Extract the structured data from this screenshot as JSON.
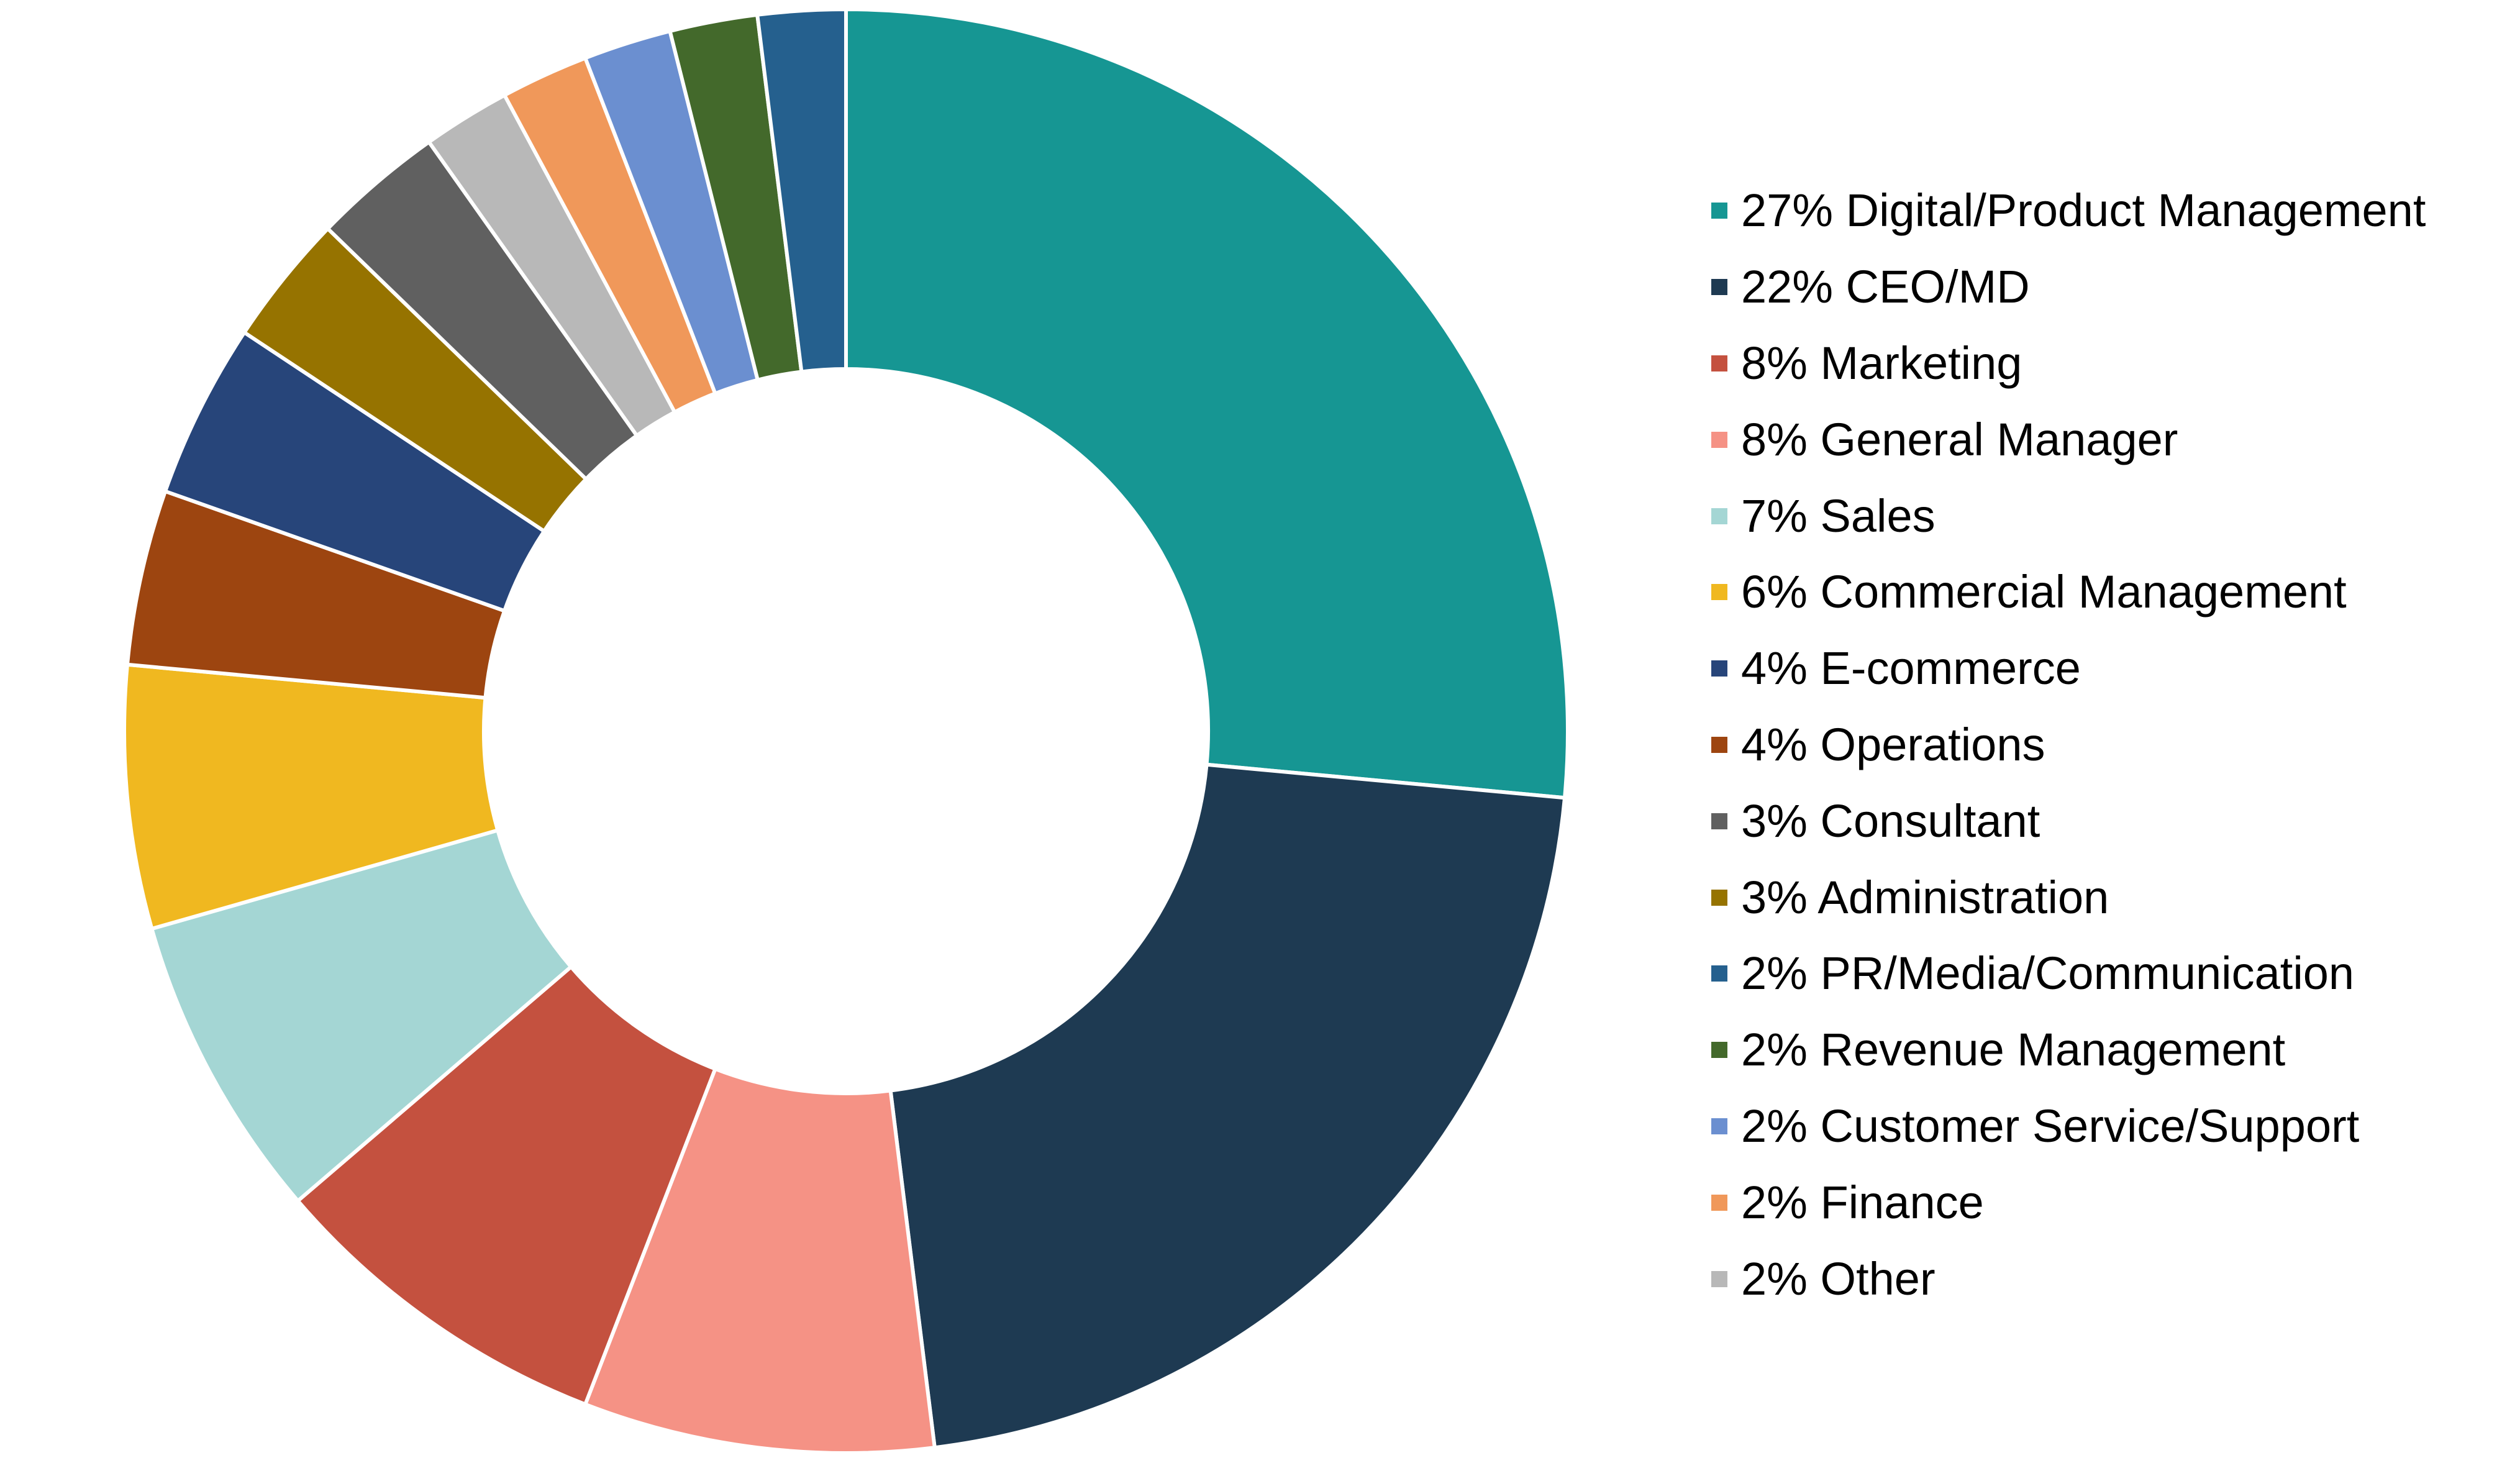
{
  "chart_data": {
    "type": "pie",
    "variant": "donut",
    "start_angle": "12 o'clock",
    "direction": "clockwise",
    "legend_position": "right",
    "slices": [
      {
        "label": "27% Digital/Product Management",
        "value": 27,
        "color": "#169693"
      },
      {
        "label": "22% CEO/MD",
        "value": 22,
        "color": "#1e3a52"
      },
      {
        "label": "8% Marketing",
        "value": 8,
        "color": "#c4513f"
      },
      {
        "label": "8% General Manager",
        "value": 8,
        "color": "#f59285"
      },
      {
        "label": "7% Sales",
        "value": 7,
        "color": "#a4d6d4"
      },
      {
        "label": "6% Commercial Management",
        "value": 6,
        "color": "#f0b820"
      },
      {
        "label": "4% E-commerce",
        "value": 4,
        "color": "#27457a"
      },
      {
        "label": "4% Operations",
        "value": 4,
        "color": "#9d4510"
      },
      {
        "label": "3% Consultant",
        "value": 3,
        "color": "#606060"
      },
      {
        "label": "3% Administration",
        "value": 3,
        "color": "#967300"
      },
      {
        "label": "2% PR/Media/Communication",
        "value": 2,
        "color": "#25608e"
      },
      {
        "label": "2% Revenue Management",
        "value": 2,
        "color": "#43692b"
      },
      {
        "label": "2% Customer Service/Support",
        "value": 2,
        "color": "#6b8fd0"
      },
      {
        "label": "2% Finance",
        "value": 2,
        "color": "#f0985a"
      },
      {
        "label": "2% Other",
        "value": 2,
        "color": "#b8b8b8"
      }
    ],
    "legend_order": [
      0,
      1,
      2,
      3,
      4,
      5,
      6,
      7,
      8,
      9,
      10,
      11,
      12,
      13,
      14
    ],
    "slice_order": [
      0,
      1,
      3,
      2,
      4,
      5,
      7,
      6,
      9,
      8,
      14,
      13,
      12,
      11,
      10
    ]
  }
}
